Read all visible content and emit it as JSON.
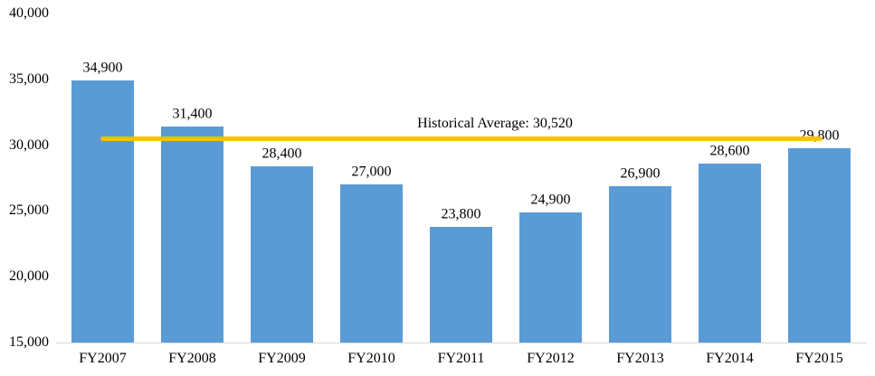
{
  "chart_data": {
    "type": "bar",
    "title": "",
    "xlabel": "",
    "ylabel": "",
    "categories": [
      "FY2007",
      "FY2008",
      "FY2009",
      "FY2010",
      "FY2011",
      "FY2012",
      "FY2013",
      "FY2014",
      "FY2015"
    ],
    "values": [
      34900,
      31400,
      28400,
      27000,
      23800,
      24900,
      26900,
      28600,
      29800
    ],
    "value_labels": [
      "34,900",
      "31,400",
      "28,400",
      "27,000",
      "23,800",
      "24,900",
      "26,900",
      "28,600",
      "29,800"
    ],
    "ylim": [
      15000,
      40000
    ],
    "y_ticks": [
      {
        "value": 15000,
        "label": "15,000"
      },
      {
        "value": 20000,
        "label": "20,000"
      },
      {
        "value": 25000,
        "label": "25,000"
      },
      {
        "value": 30000,
        "label": "30,000"
      },
      {
        "value": 35000,
        "label": "35,000"
      },
      {
        "value": 40000,
        "label": "40,000"
      }
    ],
    "grid": false,
    "legend": "none",
    "average_line": {
      "value": 30520,
      "label": "Historical Average: 30,520",
      "color": "#FFC000"
    },
    "colors": {
      "bar": "#5B9BD5",
      "axis_line": "#D9D9D9",
      "text": "#000000",
      "background": "#FFFFFF"
    }
  }
}
